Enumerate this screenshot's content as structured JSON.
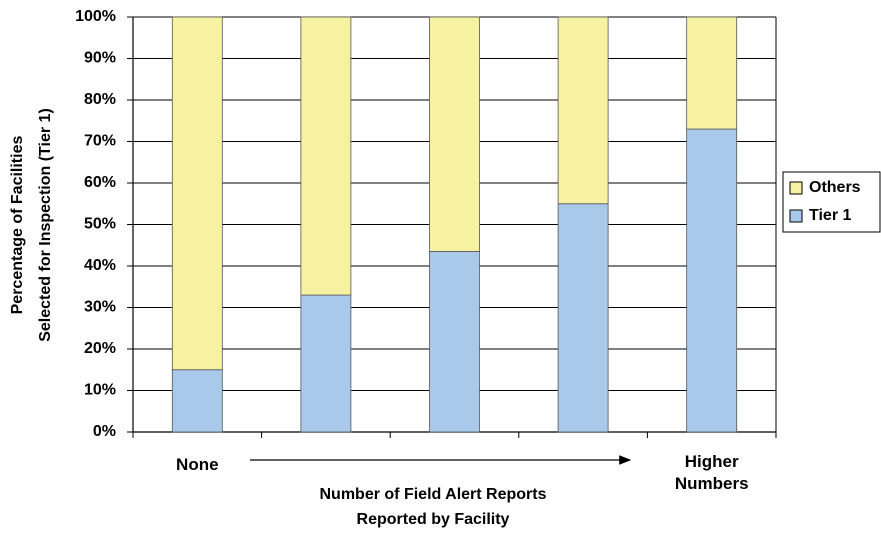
{
  "chart_data": {
    "type": "bar",
    "stacked": true,
    "categories": [
      "None",
      null,
      null,
      null,
      "Higher Numbers"
    ],
    "series": [
      {
        "name": "Tier 1",
        "color": "#a9c9ea",
        "values": [
          15,
          33,
          43.5,
          55,
          73
        ]
      },
      {
        "name": "Others",
        "color": "#f6f2a2",
        "values": [
          85,
          67,
          56.5,
          45,
          27
        ]
      }
    ],
    "xlabel": [
      "Number of Field Alert Reports",
      "Reported by Facility"
    ],
    "ylabel": [
      "Percentage of Facilities",
      "Selected for Inspection (Tier 1)"
    ],
    "ylim": [
      0,
      100
    ],
    "yticks": [
      {
        "value": 0,
        "label": "0%"
      },
      {
        "value": 10,
        "label": "10%"
      },
      {
        "value": 20,
        "label": "20%"
      },
      {
        "value": 30,
        "label": "30%"
      },
      {
        "value": 40,
        "label": "40%"
      },
      {
        "value": 50,
        "label": "50%"
      },
      {
        "value": 60,
        "label": "60%"
      },
      {
        "value": 70,
        "label": "70%"
      },
      {
        "value": 80,
        "label": "80%"
      },
      {
        "value": 90,
        "label": "90%"
      },
      {
        "value": 100,
        "label": "100%"
      }
    ],
    "grid": true,
    "legend": "right"
  }
}
